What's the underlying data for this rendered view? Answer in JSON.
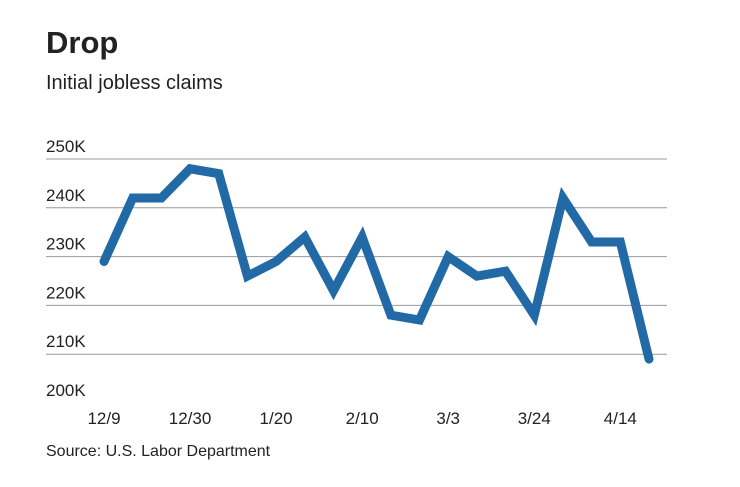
{
  "chart_data": {
    "type": "line",
    "title": "Drop",
    "subtitle": "Initial jobless claims",
    "source": "Source: U.S. Labor Department",
    "categories": [
      "12/9",
      null,
      null,
      "12/30",
      null,
      null,
      "1/20",
      null,
      null,
      "2/10",
      null,
      null,
      "3/3",
      null,
      null,
      "3/24",
      null,
      null,
      "4/14",
      null
    ],
    "series": [
      {
        "name": "Initial jobless claims",
        "color": "#226aa6",
        "values": [
          229000,
          242000,
          242000,
          248000,
          247000,
          226000,
          229000,
          234000,
          223000,
          234000,
          218000,
          217000,
          230000,
          226000,
          227000,
          218000,
          242000,
          233000,
          233000,
          209000
        ]
      }
    ],
    "ylim": [
      200000,
      250000
    ],
    "yticks": [
      {
        "value": 200000,
        "label": "200K"
      },
      {
        "value": 210000,
        "label": "210K"
      },
      {
        "value": 220000,
        "label": "220K"
      },
      {
        "value": 230000,
        "label": "230K"
      },
      {
        "value": 240000,
        "label": "240K"
      },
      {
        "value": 250000,
        "label": "250K"
      }
    ],
    "grid": true
  }
}
